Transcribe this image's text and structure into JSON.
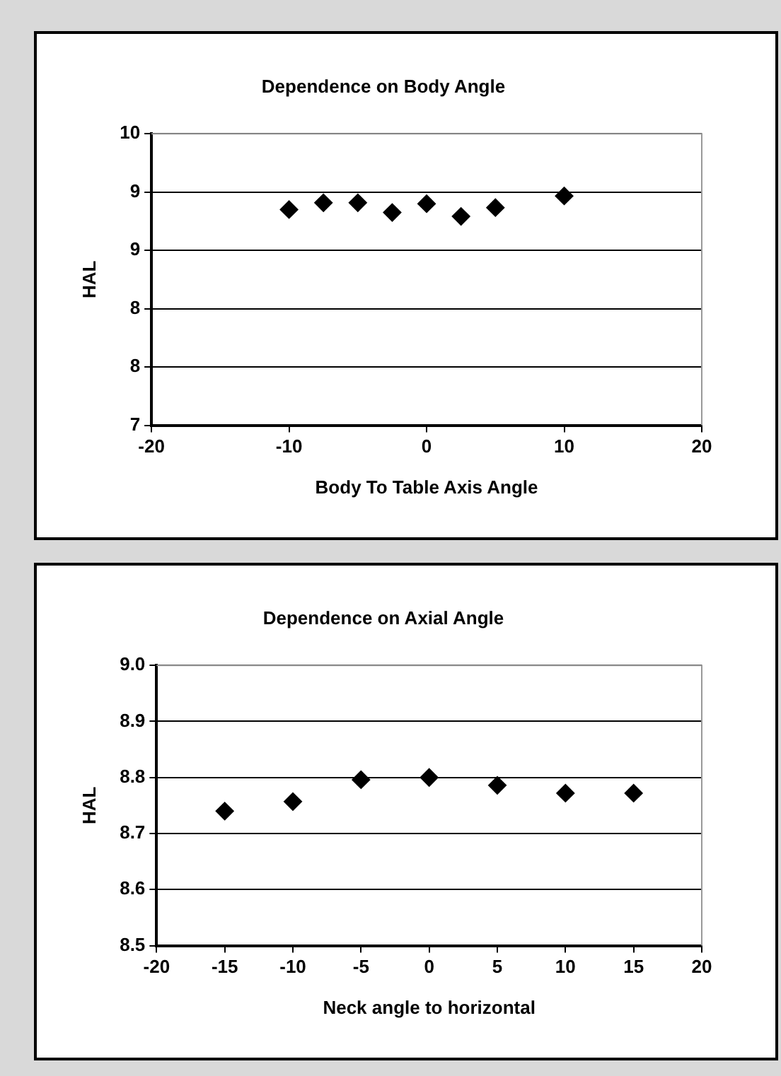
{
  "chart_data": [
    {
      "type": "scatter",
      "title": "Dependence on Body Angle",
      "xlabel": "Body To Table Axis Angle",
      "ylabel": "HAL",
      "x": [
        -10,
        -7.5,
        -5,
        -2.5,
        0,
        2.5,
        5,
        10
      ],
      "values": [
        9.22,
        9.29,
        9.29,
        9.19,
        9.28,
        9.15,
        9.24,
        9.36
      ],
      "color": "#000000",
      "marker": "diamond",
      "xlim": [
        -20,
        20
      ],
      "xticks": [
        -20,
        -10,
        0,
        10,
        20
      ],
      "ylim": [
        7,
        10
      ],
      "yticks": [
        7,
        {
          "value": 7.6,
          "label": "8"
        },
        {
          "value": 8.2,
          "label": "8"
        },
        {
          "value": 8.8,
          "label": "9"
        },
        {
          "value": 9.4,
          "label": "9"
        },
        10
      ],
      "grid": "y",
      "legend": false
    },
    {
      "type": "scatter",
      "title": "Dependence on Axial Angle",
      "xlabel": "Neck angle to horizontal",
      "ylabel": "HAL",
      "x": [
        -15,
        -10,
        -5,
        0,
        5,
        10,
        15
      ],
      "values": [
        8.74,
        8.757,
        8.796,
        8.8,
        8.786,
        8.772,
        8.772
      ],
      "color": "#000000",
      "marker": "diamond",
      "xlim": [
        -20,
        20
      ],
      "xticks": [
        -20,
        -15,
        -10,
        -5,
        0,
        5,
        10,
        15,
        20
      ],
      "ylim": [
        8.5,
        9
      ],
      "yticks": [
        8.5,
        8.6,
        8.7,
        8.8,
        8.9,
        {
          "value": 9,
          "label": "9.0"
        }
      ],
      "grid": "y",
      "legend": false
    }
  ]
}
